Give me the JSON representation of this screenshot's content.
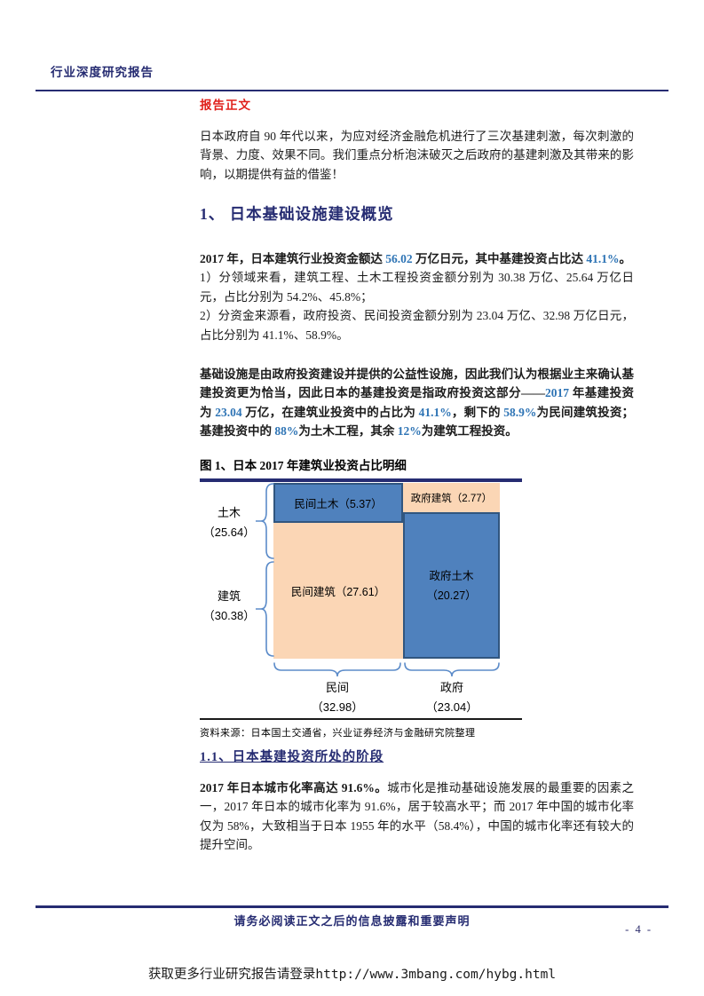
{
  "colors": {
    "navy": "#262C72",
    "red_label": "#E0201B",
    "number_blue": "#2E74B5",
    "block_blue": "#4F81BD",
    "block_blue_border": "#31567F",
    "block_peach": "#FBD6B5",
    "brace_blue": "#5B8BC9"
  },
  "header": {
    "title": "行业深度研究报告"
  },
  "body_label": "报告正文",
  "paragraphs": {
    "intro": "日本政府自 90 年代以来，为应对经济金融危机进行了三次基建刺激，每次刺激的背景、力度、效果不同。我们重点分析泡沫破灭之后政府的基建刺激及其带来的影响，以期提供有益的借鉴！",
    "overview_lead": [
      {
        "t": "2017 年，日本建筑行业投资金额达 ",
        "c": "b"
      },
      {
        "t": "56.02",
        "c": "b bl"
      },
      {
        "t": " 万亿日元，其中基建投资占比达 ",
        "c": "b"
      },
      {
        "t": "41.1%",
        "c": "b bl"
      },
      {
        "t": "。",
        "c": "b"
      }
    ],
    "overview_item1": "1）分领域来看，建筑工程、土木工程投资金额分别为 30.38 万亿、25.64 万亿日元，占比分别为 54.2%、45.8%；",
    "overview_item2": "2）分资金来源看，政府投资、民间投资金额分别为 23.04 万亿、32.98 万亿日元，占比分别为 41.1%、58.9%。",
    "key": [
      {
        "t": "基础设施是由政府投资建设并提供的公益性设施，因此我们认为根据业主来确认基建投资更为恰当，因此日本的基建投资是指政府投资这部分——",
        "c": "b"
      },
      {
        "t": "2017",
        "c": "b bl"
      },
      {
        "t": " 年基建投资为 ",
        "c": "b"
      },
      {
        "t": "23.04",
        "c": "b bl"
      },
      {
        "t": " 万亿，在建筑业投资中的占比为 ",
        "c": "b"
      },
      {
        "t": "41.1%",
        "c": "b bl"
      },
      {
        "t": "，剩下的 ",
        "c": "b"
      },
      {
        "t": "58.9%",
        "c": "b bl"
      },
      {
        "t": "为民间建筑投资；基建投资中的 ",
        "c": "b"
      },
      {
        "t": "88%",
        "c": "b bl"
      },
      {
        "t": "为土木工程，其余 ",
        "c": "b"
      },
      {
        "t": "12%",
        "c": "b bl"
      },
      {
        "t": "为建筑工程投资。",
        "c": "b"
      }
    ],
    "urban": [
      {
        "t": "2017 年日本城市化率高达 91.6%。",
        "c": "b"
      },
      {
        "t": "城市化是推动基础设施发展的最重要的因素之一，2017 年日本的城市化率为 91.6%，居于较高水平；而 2017 年中国的城市化率仅为 58%，大致相当于日本 1955 年的水平（58.4%），中国的城市化率还有较大的提升空间。",
        "c": ""
      }
    ]
  },
  "section1_title": "1、 日本基础设施建设概览",
  "section11_title": "1.1、日本基建投资所处的阶段",
  "figure": {
    "title": "图 1、日本 2017 年建筑业投资占比明细",
    "source": "资料来源：日本国土交通省，兴业证券经济与金融研究院整理",
    "blocks": {
      "private_civil": "民间土木（5.37）",
      "gov_building": "政府建筑（2.77）",
      "private_building": "民间建筑（27.61）",
      "gov_civil_name": "政府土木",
      "gov_civil_value": "（20.27）"
    },
    "axis": {
      "civil": "土木",
      "civil_value": "（25.64）",
      "building": "建筑",
      "building_value": "（30.38）",
      "private": "民间",
      "private_value": "（32.98）",
      "gov": "政府",
      "gov_value": "（23.04）"
    }
  },
  "chart_data": {
    "type": "mekko",
    "title": "图 1、日本 2017 年建筑业投资占比明细",
    "unit": "万亿日元",
    "grand_total": 56.02,
    "columns": [
      {
        "name": "民间",
        "total": 32.98,
        "segments": [
          {
            "name": "民间土木",
            "value": 5.37,
            "color": "#4F81BD"
          },
          {
            "name": "民间建筑",
            "value": 27.61,
            "color": "#FBD6B5"
          }
        ]
      },
      {
        "name": "政府",
        "total": 23.04,
        "segments": [
          {
            "name": "政府建筑",
            "value": 2.77,
            "color": "#FBD6B5"
          },
          {
            "name": "政府土木",
            "value": 20.27,
            "color": "#4F81BD"
          }
        ]
      }
    ],
    "rows": [
      {
        "name": "土木",
        "total": 25.64
      },
      {
        "name": "建筑",
        "total": 30.38
      }
    ]
  },
  "footer": {
    "disclaimer": "请务必阅读正文之后的信息披露和重要声明",
    "page_number": "- 4 -"
  },
  "watermark": "获取更多行业研究报告请登录http://www.3mbang.com/hybg.html"
}
